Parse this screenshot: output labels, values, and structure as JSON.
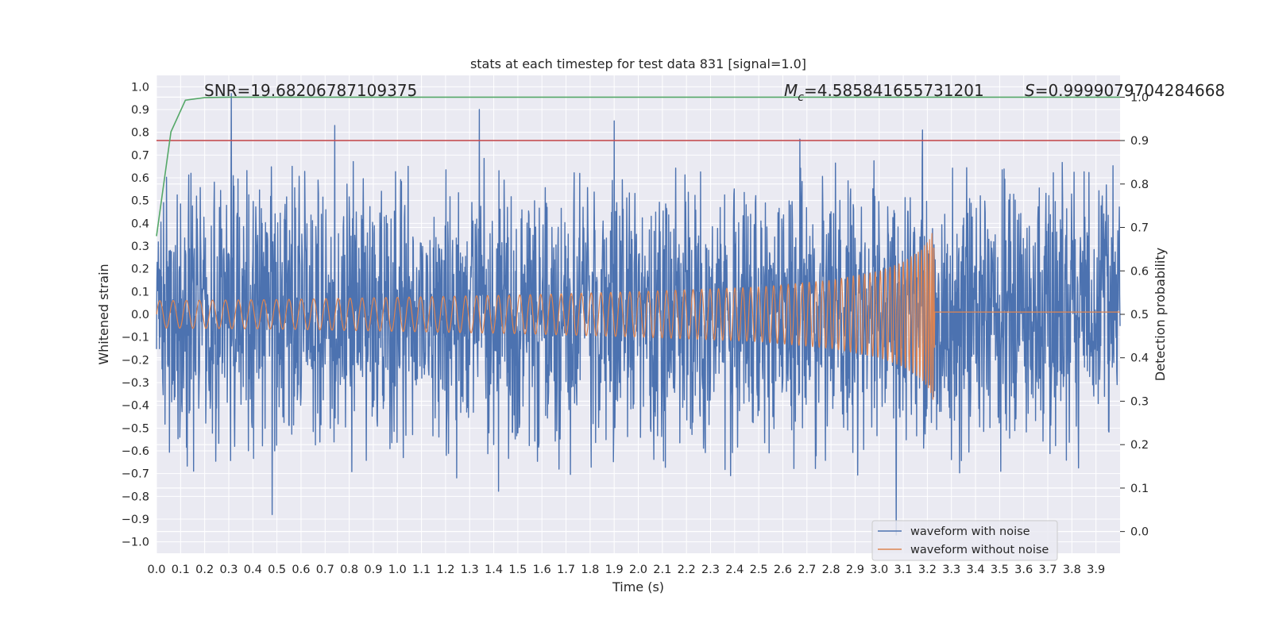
{
  "chart_data": {
    "type": "line",
    "title": "stats at each timestep for test data 831 [signal=1.0]",
    "xlabel": "Time (s)",
    "ylabel": "Whitened strain",
    "ylabel_right": "Detection probability",
    "xlim": [
      0.0,
      4.0
    ],
    "ylim": [
      -1.05,
      1.05
    ],
    "ylim_right": [
      -0.05,
      1.05
    ],
    "x_ticks": [
      "0.0",
      "0.1",
      "0.2",
      "0.3",
      "0.4",
      "0.5",
      "0.6",
      "0.7",
      "0.8",
      "0.9",
      "1.0",
      "1.1",
      "1.2",
      "1.3",
      "1.4",
      "1.5",
      "1.6",
      "1.7",
      "1.8",
      "1.9",
      "2.0",
      "2.1",
      "2.2",
      "2.3",
      "2.4",
      "2.5",
      "2.6",
      "2.7",
      "2.8",
      "2.9",
      "3.0",
      "3.1",
      "3.2",
      "3.3",
      "3.4",
      "3.5",
      "3.6",
      "3.7",
      "3.8",
      "3.9"
    ],
    "y_ticks": [
      "1.0",
      "0.9",
      "0.8",
      "0.7",
      "0.6",
      "0.5",
      "0.4",
      "0.3",
      "0.2",
      "0.1",
      "0.0",
      "−0.1",
      "−0.2",
      "−0.3",
      "−0.4",
      "−0.5",
      "−0.6",
      "−0.7",
      "−0.8",
      "−0.9",
      "−1.0"
    ],
    "y_ticks_right": [
      "1.0",
      "0.9",
      "0.8",
      "0.7",
      "0.6",
      "0.5",
      "0.4",
      "0.3",
      "0.2",
      "0.1",
      "0.0"
    ],
    "annotations": {
      "snr": "SNR=19.68206787109375",
      "mc_value": "=4.585841655731201",
      "s_value": "=0.9999079704284668"
    },
    "series": [
      {
        "name": "waveform with noise",
        "color": "#4c72b0",
        "description": "noisy whitened strain, amplitude ~0.3-0.6 with spikes to ~0.97 and -0.97",
        "spikes": [
          [
            0.31,
            0.97
          ],
          [
            0.48,
            -0.88
          ],
          [
            0.74,
            0.83
          ],
          [
            1.34,
            0.9
          ],
          [
            1.9,
            0.85
          ],
          [
            2.67,
            0.77
          ],
          [
            3.07,
            -0.97
          ],
          [
            3.18,
            0.81
          ]
        ]
      },
      {
        "name": "waveform without noise",
        "color": "#dd8452",
        "description": "chirp signal merging near t=3.23 s",
        "envelope": [
          [
            0.0,
            0.06
          ],
          [
            0.5,
            0.065
          ],
          [
            1.0,
            0.075
          ],
          [
            1.5,
            0.085
          ],
          [
            2.0,
            0.1
          ],
          [
            2.5,
            0.12
          ],
          [
            2.8,
            0.15
          ],
          [
            3.0,
            0.19
          ],
          [
            3.1,
            0.23
          ],
          [
            3.17,
            0.28
          ],
          [
            3.21,
            0.33
          ],
          [
            3.225,
            0.38
          ],
          [
            3.235,
            0.0
          ],
          [
            4.0,
            0.0
          ]
        ],
        "merger_time": 3.23,
        "post_merger_value": 0.01
      },
      {
        "name": "detection probability",
        "axis": "right",
        "color": "#55a868",
        "x": [
          0.0,
          0.06,
          0.12,
          0.2,
          0.3,
          1.0,
          2.0,
          3.0,
          4.0
        ],
        "values": [
          0.68,
          0.92,
          0.993,
          0.999,
          0.9999,
          0.9999,
          0.9999,
          0.9999,
          0.9999
        ]
      },
      {
        "name": "threshold",
        "axis": "right",
        "color": "#c44e52",
        "x": [
          0.0,
          4.0
        ],
        "values": [
          0.9,
          0.9
        ]
      }
    ],
    "legend": {
      "placement": "lower-right",
      "entries": [
        "waveform with noise",
        "waveform without noise"
      ]
    },
    "grid": true
  }
}
